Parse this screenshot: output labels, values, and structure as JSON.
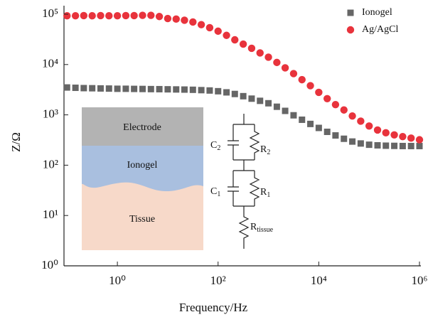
{
  "chart_data": {
    "type": "scatter",
    "x_label": "Frequency/Hz",
    "y_label": "Z/Ω",
    "xscale": "log",
    "yscale": "log",
    "xlim": [
      0.087,
      1000000
    ],
    "ylim": [
      1,
      100000
    ],
    "xticks": [
      {
        "value": 1,
        "label": "10⁰"
      },
      {
        "value": 100,
        "label": "10²"
      },
      {
        "value": 10000,
        "label": "10⁴"
      },
      {
        "value": 1000000,
        "label": "10⁶"
      }
    ],
    "yticks": [
      {
        "value": 1,
        "label": "10⁰"
      },
      {
        "value": 10,
        "label": "10¹"
      },
      {
        "value": 100,
        "label": "10²"
      },
      {
        "value": 1000,
        "label": "10³"
      },
      {
        "value": 10000,
        "label": "10⁴"
      },
      {
        "value": 100000,
        "label": "10⁵"
      }
    ],
    "legend": "upper right",
    "x": [
      0.1,
      0.147,
      0.215,
      0.316,
      0.464,
      0.681,
      1,
      1.47,
      2.15,
      3.16,
      4.64,
      6.81,
      10,
      14.7,
      21.5,
      31.6,
      46.4,
      68.1,
      100,
      147,
      215,
      316,
      464,
      681,
      1000,
      1470,
      2150,
      3160,
      4640,
      6810,
      10000,
      14700,
      21500,
      31600,
      46400,
      68100,
      100000,
      147000,
      215000,
      316000,
      464000,
      681000,
      1000000
    ],
    "series": [
      {
        "name": "Ionogel",
        "color": "#666666",
        "marker": "square",
        "values": [
          3500,
          3450,
          3400,
          3380,
          3350,
          3330,
          3300,
          3300,
          3280,
          3270,
          3250,
          3240,
          3220,
          3200,
          3180,
          3150,
          3100,
          3050,
          2950,
          2800,
          2600,
          2350,
          2100,
          1900,
          1700,
          1450,
          1200,
          980,
          800,
          660,
          550,
          460,
          390,
          335,
          295,
          270,
          255,
          248,
          244,
          242,
          240,
          240,
          240
        ]
      },
      {
        "name": "Ag/AgCl",
        "color": "#e8333c",
        "marker": "circle",
        "values": [
          93000,
          93000,
          94000,
          93000,
          94000,
          93000,
          93000,
          94000,
          94000,
          95000,
          95000,
          90000,
          82000,
          80000,
          76000,
          70000,
          62000,
          54000,
          46000,
          38000,
          31000,
          25500,
          21000,
          17000,
          14000,
          11000,
          8600,
          6600,
          5000,
          3800,
          2800,
          2100,
          1600,
          1250,
          950,
          750,
          600,
          500,
          440,
          400,
          370,
          345,
          320
        ]
      }
    ],
    "inset": {
      "layers": [
        "Electrode",
        "Ionogel",
        "Tissue"
      ],
      "circuit": [
        {
          "main": "C",
          "sub": "2"
        },
        {
          "main": "R",
          "sub": "2"
        },
        {
          "main": "C",
          "sub": "1"
        },
        {
          "main": "R",
          "sub": "1"
        },
        {
          "main": "R",
          "sub": "tissue"
        }
      ]
    }
  }
}
